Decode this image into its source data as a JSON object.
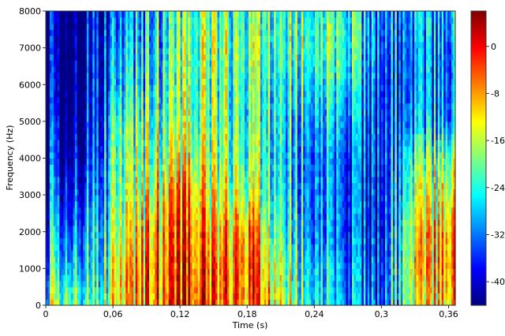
{
  "chart_data": {
    "type": "heatmap",
    "title": "",
    "xlabel": "Time (s)",
    "ylabel": "Frequency (Hz)",
    "xlim": [
      0,
      0.366
    ],
    "ylim": [
      0,
      8000
    ],
    "x_ticks": [
      0,
      0.06,
      0.12,
      0.18,
      0.24,
      0.3,
      0.36
    ],
    "x_tick_labels": [
      "0",
      "0,06",
      "0,12",
      "0,18",
      "0,24",
      "0,3",
      "0,36"
    ],
    "y_ticks": [
      0,
      1000,
      2000,
      3000,
      4000,
      5000,
      6000,
      7000,
      8000
    ],
    "y_tick_labels": [
      "0",
      "1000",
      "2000",
      "3000",
      "4000",
      "5000",
      "6000",
      "7000",
      "8000"
    ],
    "colorbar": {
      "range": [
        -44,
        6
      ],
      "ticks": [
        0,
        -8,
        -16,
        -24,
        -32,
        -40
      ],
      "tick_labels": [
        "0",
        "-8",
        "-16",
        "-24",
        "-32",
        "-40"
      ],
      "colormap": "jet"
    },
    "time_s": [
      0,
      0.02,
      0.045,
      0.06,
      0.09,
      0.12,
      0.15,
      0.18,
      0.2,
      0.24,
      0.27,
      0.3,
      0.33,
      0.366
    ],
    "freq_hz": [
      0,
      1000,
      2000,
      3000,
      4000,
      5000,
      6000,
      7000,
      8000
    ],
    "levels_db": [
      [
        -22,
        -12,
        -26,
        -14,
        -6,
        -3,
        -5,
        -6,
        -10,
        -22,
        -28,
        -32,
        -16,
        -10
      ],
      [
        -26,
        -22,
        -30,
        -16,
        -6,
        -5,
        -6,
        -4,
        -14,
        -24,
        -30,
        -34,
        -12,
        -8
      ],
      [
        -30,
        -28,
        -30,
        -20,
        -8,
        -6,
        -10,
        -6,
        -18,
        -28,
        -32,
        -36,
        -14,
        -8
      ],
      [
        -34,
        -32,
        -34,
        -22,
        -14,
        -8,
        -14,
        -16,
        -22,
        -28,
        -32,
        -36,
        -18,
        -14
      ],
      [
        -38,
        -36,
        -38,
        -22,
        -18,
        -16,
        -18,
        -20,
        -24,
        -28,
        -32,
        -34,
        -22,
        -20
      ],
      [
        -40,
        -38,
        -40,
        -24,
        -20,
        -20,
        -20,
        -22,
        -24,
        -26,
        -28,
        -34,
        -30,
        -32
      ],
      [
        -42,
        -40,
        -40,
        -30,
        -24,
        -22,
        -20,
        -22,
        -24,
        -22,
        -24,
        -34,
        -32,
        -34
      ],
      [
        -42,
        -42,
        -40,
        -32,
        -26,
        -22,
        -18,
        -20,
        -22,
        -18,
        -20,
        -32,
        -32,
        -32
      ],
      [
        -42,
        -42,
        -40,
        -34,
        -28,
        -24,
        -20,
        -22,
        -22,
        -20,
        -22,
        -30,
        -30,
        -30
      ]
    ]
  }
}
